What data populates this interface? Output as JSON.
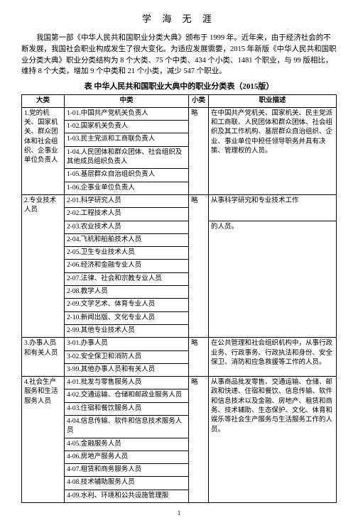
{
  "title": "学 海 无 涯",
  "intro": "我国第一部《中华人民共和国职业分类大典》颁布于 1999 年。近年来，由于经济社会的不断发展，我国社会职业构成发生了很大变化。为适应发展需要，2015 年新版《中华人民共和国职业分类大典》职业分类结构为 8 个大类、75 个中类、434 个小类、1481 个职业，与 99 版相比，维持 8 个大类，增加 9 个中类和 21 个小类，减少 547 个职业。",
  "caption": "表 中华人民共和国职业大典中的职业分类表（2015版）",
  "headers": {
    "c1": "大类",
    "c2": "中类",
    "c3": "小类",
    "c4": "职业描述"
  },
  "g1": {
    "major": "1.党的机关、国家机关、群众团体和社会组织、企事业单位负责人",
    "r1": "1-01.中国共产党机关负责人",
    "r2": "1-02.国家机关负责人",
    "r3": "1-03.民主党派和工商联负责人",
    "r4": "1-04.人民团体和群众团体、社会组织及其他成员组织负责人",
    "r5": "1-05.基层群众自治组织负责人",
    "r6": "1-06.企事业单位负责人",
    "minor": "略",
    "desc": "在中国共产党机关、国家机关、民主党派和工商联、人民团体和群众团体、社会组织及其工作机构、基层群众自治组织、企业、事业单位中担任领导职务并具有决策、管理权的人员。"
  },
  "g2": {
    "major": "2.专业技术人员",
    "r1": "2-01.科学研究人员",
    "r2": "2-02.工程技术人员",
    "r3": "2-03.农业技术人员",
    "r4": "2-04.飞机和船舶技术人员",
    "r5": "2-05.卫生专业技术人员",
    "r6": "2-06.经济和金融专业人员",
    "r7": "2-07.法律、社会和宗教专业人员",
    "r8": "2-08.教学人员",
    "r9": "2-09.文学艺术、体育专业人员",
    "r10": "2-10.新闻出版、文化专业人员",
    "r11": "2-99.其他专业技术人员",
    "minor": "略",
    "desc": "从事科学研究和专业技术工作",
    "desc2": "的人员。"
  },
  "g3": {
    "major": "3.办事人员和有关人员",
    "r1": "3-01.办事人员",
    "r2": "3-02.安全保卫和消防人员",
    "r3": "3-99.其他办事人员和有关人员",
    "minor": "略",
    "desc": "在公共管理和社会组织机构中，从事行政业务、行政事务、行政执法和身份、安全保卫、消防和应急救援等工作的人员。"
  },
  "g4": {
    "major": "4.社会生产服务和生活服务人员",
    "r1": "4-01.批发与零售服务人员",
    "r2": "4-02.交通运输、仓储和邮政业服务人员",
    "r3": "4-03.住宿和餐饮服务人员",
    "r4": "4-04.信息传输、软件和信息技术服务人员",
    "r5": "4-05.金融服务人员",
    "r6": "4-06.房地产服务人员",
    "r7": "4-07.租赁和商务服务人员",
    "r8": "4-08.技术辅助服务人员",
    "r9": "4-09.水利、环境和公共设施管理服",
    "minor": "略",
    "desc": "从事商品批发零售、交通运输、仓储、邮政和快递、住宿和餐饮、信息传输、软件和信息技术以及金融、房地产、租赁和商务、技术辅助、生态保护、文化、体育和娱乐等社会生产服务与生活服务工作的人员。"
  },
  "pageNum": "1"
}
